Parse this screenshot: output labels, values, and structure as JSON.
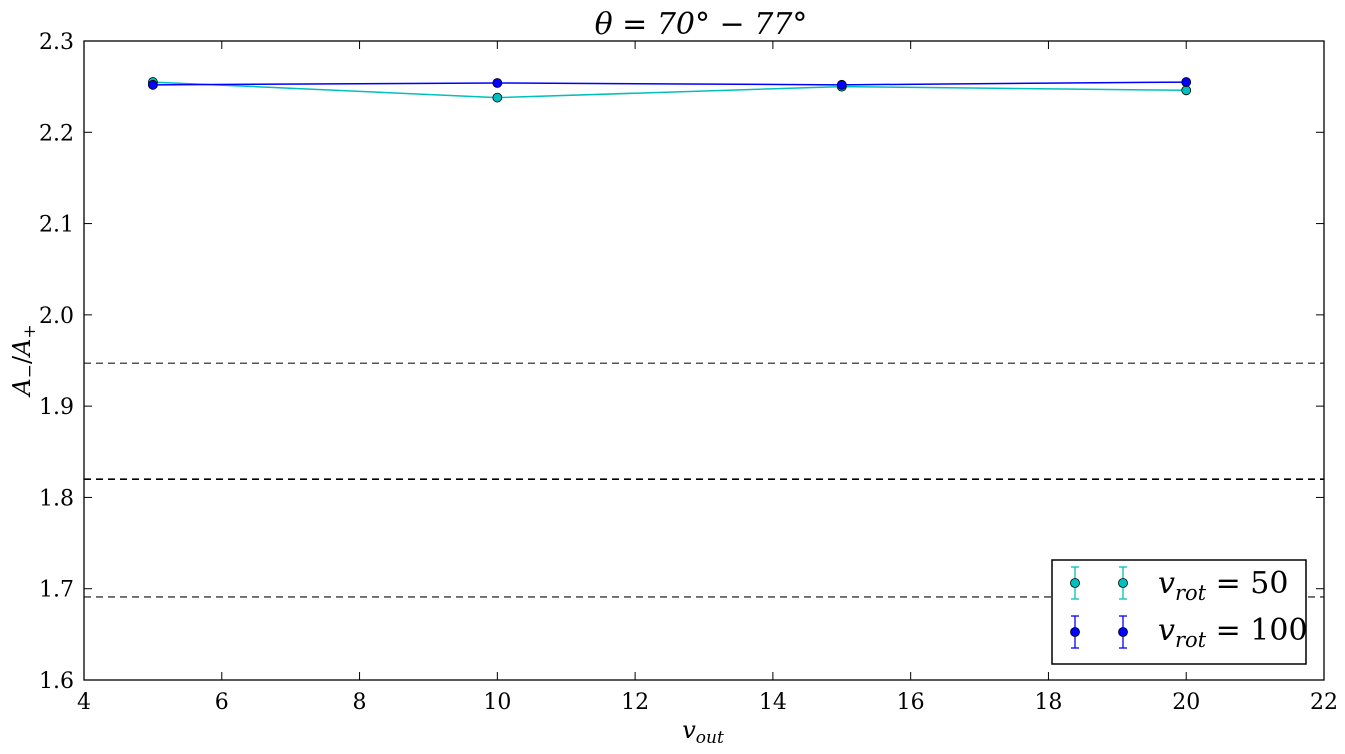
{
  "chart_data": {
    "type": "line",
    "title": "θ = 70° − 77°",
    "xlabel": "v_out",
    "ylabel": "A₋/A₊",
    "xlim": [
      4,
      22
    ],
    "ylim": [
      1.6,
      2.3
    ],
    "xticks": [
      4,
      6,
      8,
      10,
      12,
      14,
      16,
      18,
      20,
      22
    ],
    "yticks": [
      1.6,
      1.7,
      1.8,
      1.9,
      2.0,
      2.1,
      2.2,
      2.3
    ],
    "xtick_labels": [
      "4",
      "6",
      "8",
      "10",
      "12",
      "14",
      "16",
      "18",
      "20",
      "22"
    ],
    "ytick_labels": [
      "1.6",
      "1.7",
      "1.8",
      "1.9",
      "2.0",
      "2.1",
      "2.2",
      "2.3"
    ],
    "grid": false,
    "legend_position": "bottom-right",
    "x": [
      5,
      10,
      15,
      20
    ],
    "series": [
      {
        "name": "v_rot = 50",
        "color": "#00bfbf",
        "values": [
          2.255,
          2.238,
          2.25,
          2.246
        ]
      },
      {
        "name": "v_rot = 100",
        "color": "#0000ff",
        "values": [
          2.252,
          2.254,
          2.252,
          2.255
        ]
      }
    ],
    "reference_lines": [
      {
        "y": 1.947,
        "style": "dashed",
        "color": "#555555"
      },
      {
        "y": 1.82,
        "style": "dashed",
        "color": "#000000"
      },
      {
        "y": 1.691,
        "style": "dashed",
        "color": "#555555"
      }
    ]
  },
  "legend": {
    "entries": [
      {
        "var": "v",
        "sub": "rot",
        "rest": " = 50"
      },
      {
        "var": "v",
        "sub": "rot",
        "rest": " = 100"
      }
    ]
  },
  "labels": {
    "title": "θ = 70° − 77°",
    "x_var": "v",
    "x_sub": "out",
    "y_a1": "A",
    "y_s1": "−",
    "y_slash": "/",
    "y_a2": "A",
    "y_s2": "+"
  }
}
